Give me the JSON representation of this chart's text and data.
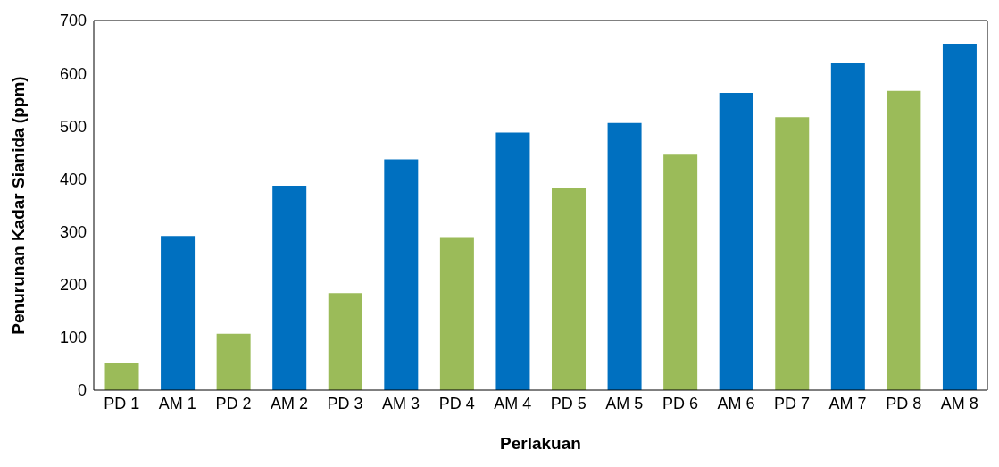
{
  "chart_data": {
    "type": "bar",
    "xlabel": "Perlakuan",
    "ylabel": "Penurunan Kadar Sianida (ppm)",
    "categories": [
      "PD 1",
      "AM 1",
      "PD 2",
      "AM 2",
      "PD 3",
      "AM 3",
      "PD 4",
      "AM 4",
      "PD 5",
      "AM 5",
      "PD 6",
      "AM 6",
      "PD 7",
      "AM 7",
      "PD 8",
      "AM 8"
    ],
    "values": [
      51,
      292,
      107,
      387,
      184,
      437,
      290,
      488,
      384,
      506,
      446,
      563,
      517,
      619,
      567,
      656
    ],
    "colors": [
      "#9bbb59",
      "#0070c0",
      "#9bbb59",
      "#0070c0",
      "#9bbb59",
      "#0070c0",
      "#9bbb59",
      "#0070c0",
      "#9bbb59",
      "#0070c0",
      "#9bbb59",
      "#0070c0",
      "#9bbb59",
      "#0070c0",
      "#9bbb59",
      "#0070c0"
    ],
    "ylim": [
      0,
      700
    ],
    "yticks": [
      0,
      100,
      200,
      300,
      400,
      500,
      600,
      700
    ],
    "grid": false,
    "legend": false
  }
}
